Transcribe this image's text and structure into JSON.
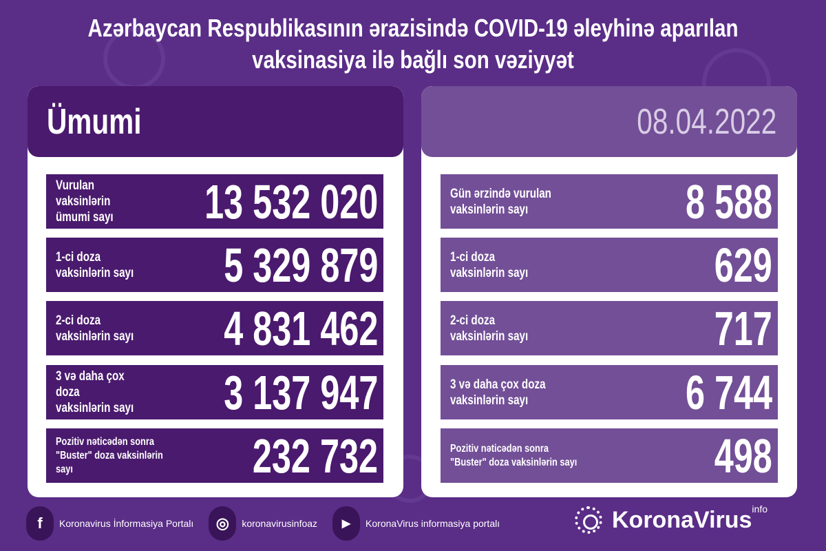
{
  "title": {
    "line1": "Azərbaycan Respublikasının ərazisində COVID-19 əleyhinə aparılan",
    "line2": "vaksinasiya ilə bağlı son vəziyyət"
  },
  "left": {
    "header": "Ümumi",
    "rows": [
      {
        "label": "Vurulan vaksinlərin\nümumi sayı",
        "value": "13 532 020"
      },
      {
        "label": "1-ci doza\nvaksinlərin sayı",
        "value": "5 329 879"
      },
      {
        "label": "2-ci doza\nvaksinlərin sayı",
        "value": "4 831 462"
      },
      {
        "label": "3 və daha çox doza\nvaksinlərin sayı",
        "value": "3 137 947"
      },
      {
        "label": "Pozitiv nəticədən sonra\n\"Buster\" doza vaksinlərin sayı",
        "value": "232 732"
      }
    ]
  },
  "right": {
    "header": "08.04.2022",
    "rows": [
      {
        "label": "Gün ərzində vurulan\nvaksinlərin sayı",
        "value": "8 588"
      },
      {
        "label": "1-ci doza\nvaksinlərin sayı",
        "value": "629"
      },
      {
        "label": "2-ci doza\nvaksinlərin sayı",
        "value": "717"
      },
      {
        "label": "3 və daha çox doza\nvaksinlərin sayı",
        "value": "6 744"
      },
      {
        "label": "Pozitiv nəticədən sonra\n\"Buster\" doza vaksinlərin sayı",
        "value": "498"
      }
    ]
  },
  "footer": {
    "items": [
      {
        "icon": "facebook-icon",
        "glyph": "f",
        "text": "Koronavirus İnformasiya Portalı"
      },
      {
        "icon": "instagram-icon",
        "glyph": "◎",
        "text": "koronavirusinfoaz"
      },
      {
        "icon": "youtube-icon",
        "glyph": "▶",
        "text": "KoronaVirus informasiya portalı"
      }
    ]
  },
  "logo": {
    "text": "KoronaVirus",
    "sup": "info"
  },
  "colors": {
    "background": "#5a2d87",
    "left_box": "#4a1a6e",
    "right_box": "#724f97",
    "panel": "#ffffff"
  }
}
